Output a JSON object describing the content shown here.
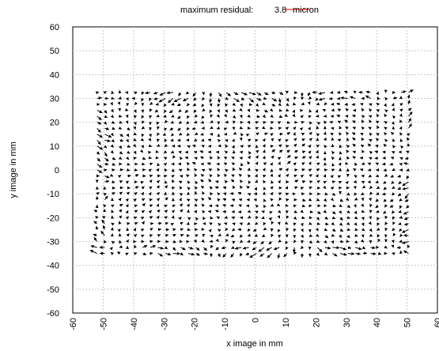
{
  "chart_data": {
    "type": "vector-field",
    "title": "maximum residual:",
    "scale_value": "3.8",
    "scale_unit": "micron",
    "xlabel": "x image in mm",
    "ylabel": "y image in mm",
    "xlim": [
      -60,
      60
    ],
    "ylim": [
      -60,
      60
    ],
    "xticks": [
      -60,
      -50,
      -40,
      -30,
      -20,
      -10,
      0,
      10,
      20,
      30,
      40,
      50,
      60
    ],
    "yticks": [
      -60,
      -50,
      -40,
      -30,
      -20,
      -10,
      0,
      10,
      20,
      30,
      40,
      50,
      60
    ],
    "grid": true,
    "scale_arrow_color": "#cc0000",
    "field_extent": {
      "x": [
        -52,
        52
      ],
      "y": [
        -35,
        33
      ]
    },
    "grid_spacing_mm": 2.5,
    "max_arrow_length_mm": 3.2
  }
}
